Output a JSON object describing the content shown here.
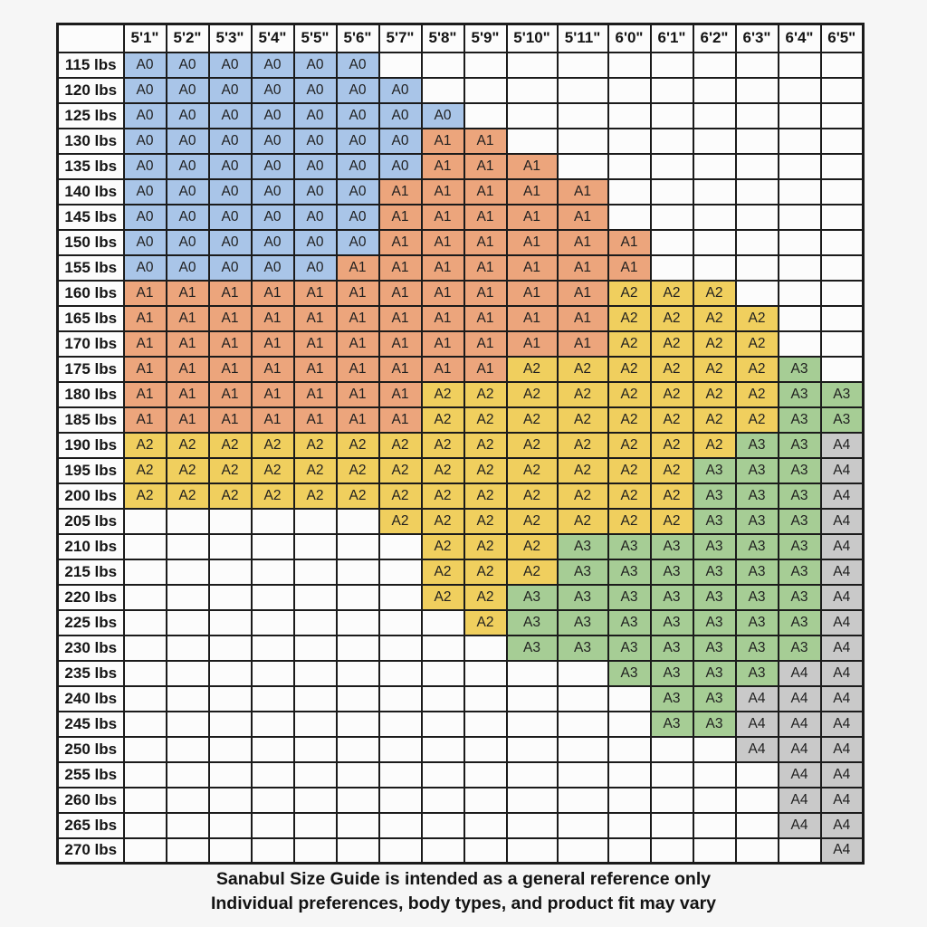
{
  "chart_data": {
    "type": "table",
    "corner_label": "",
    "columns": [
      "5'1\"",
      "5'2\"",
      "5'3\"",
      "5'4\"",
      "5'5\"",
      "5'6\"",
      "5'7\"",
      "5'8\"",
      "5'9\"",
      "5'10\"",
      "5'11\"",
      "6'0\"",
      "6'1\"",
      "6'2\"",
      "6'3\"",
      "6'4\"",
      "6'5\""
    ],
    "rows": [
      {
        "label": "115 lbs",
        "cells": [
          "A0",
          "A0",
          "A0",
          "A0",
          "A0",
          "A0",
          "",
          "",
          "",
          "",
          "",
          "",
          "",
          "",
          "",
          "",
          ""
        ]
      },
      {
        "label": "120 lbs",
        "cells": [
          "A0",
          "A0",
          "A0",
          "A0",
          "A0",
          "A0",
          "A0",
          "",
          "",
          "",
          "",
          "",
          "",
          "",
          "",
          "",
          ""
        ]
      },
      {
        "label": "125 lbs",
        "cells": [
          "A0",
          "A0",
          "A0",
          "A0",
          "A0",
          "A0",
          "A0",
          "A0",
          "",
          "",
          "",
          "",
          "",
          "",
          "",
          "",
          ""
        ]
      },
      {
        "label": "130 lbs",
        "cells": [
          "A0",
          "A0",
          "A0",
          "A0",
          "A0",
          "A0",
          "A0",
          "A1",
          "A1",
          "",
          "",
          "",
          "",
          "",
          "",
          "",
          ""
        ]
      },
      {
        "label": "135 lbs",
        "cells": [
          "A0",
          "A0",
          "A0",
          "A0",
          "A0",
          "A0",
          "A0",
          "A1",
          "A1",
          "A1",
          "",
          "",
          "",
          "",
          "",
          "",
          ""
        ]
      },
      {
        "label": "140 lbs",
        "cells": [
          "A0",
          "A0",
          "A0",
          "A0",
          "A0",
          "A0",
          "A1",
          "A1",
          "A1",
          "A1",
          "A1",
          "",
          "",
          "",
          "",
          "",
          ""
        ]
      },
      {
        "label": "145 lbs",
        "cells": [
          "A0",
          "A0",
          "A0",
          "A0",
          "A0",
          "A0",
          "A1",
          "A1",
          "A1",
          "A1",
          "A1",
          "",
          "",
          "",
          "",
          "",
          ""
        ]
      },
      {
        "label": "150 lbs",
        "cells": [
          "A0",
          "A0",
          "A0",
          "A0",
          "A0",
          "A0",
          "A1",
          "A1",
          "A1",
          "A1",
          "A1",
          "A1",
          "",
          "",
          "",
          "",
          ""
        ]
      },
      {
        "label": "155 lbs",
        "cells": [
          "A0",
          "A0",
          "A0",
          "A0",
          "A0",
          "A1",
          "A1",
          "A1",
          "A1",
          "A1",
          "A1",
          "A1",
          "",
          "",
          "",
          "",
          ""
        ]
      },
      {
        "label": "160 lbs",
        "cells": [
          "A1",
          "A1",
          "A1",
          "A1",
          "A1",
          "A1",
          "A1",
          "A1",
          "A1",
          "A1",
          "A1",
          "A2",
          "A2",
          "A2",
          "",
          "",
          ""
        ]
      },
      {
        "label": "165 lbs",
        "cells": [
          "A1",
          "A1",
          "A1",
          "A1",
          "A1",
          "A1",
          "A1",
          "A1",
          "A1",
          "A1",
          "A1",
          "A2",
          "A2",
          "A2",
          "A2",
          "",
          ""
        ]
      },
      {
        "label": "170 lbs",
        "cells": [
          "A1",
          "A1",
          "A1",
          "A1",
          "A1",
          "A1",
          "A1",
          "A1",
          "A1",
          "A1",
          "A1",
          "A2",
          "A2",
          "A2",
          "A2",
          "",
          ""
        ]
      },
      {
        "label": "175 lbs",
        "cells": [
          "A1",
          "A1",
          "A1",
          "A1",
          "A1",
          "A1",
          "A1",
          "A1",
          "A1",
          "A2",
          "A2",
          "A2",
          "A2",
          "A2",
          "A2",
          "A3",
          ""
        ]
      },
      {
        "label": "180 lbs",
        "cells": [
          "A1",
          "A1",
          "A1",
          "A1",
          "A1",
          "A1",
          "A1",
          "A2",
          "A2",
          "A2",
          "A2",
          "A2",
          "A2",
          "A2",
          "A2",
          "A3",
          "A3"
        ]
      },
      {
        "label": "185 lbs",
        "cells": [
          "A1",
          "A1",
          "A1",
          "A1",
          "A1",
          "A1",
          "A1",
          "A2",
          "A2",
          "A2",
          "A2",
          "A2",
          "A2",
          "A2",
          "A2",
          "A3",
          "A3"
        ]
      },
      {
        "label": "190 lbs",
        "cells": [
          "A2",
          "A2",
          "A2",
          "A2",
          "A2",
          "A2",
          "A2",
          "A2",
          "A2",
          "A2",
          "A2",
          "A2",
          "A2",
          "A2",
          "A3",
          "A3",
          "A4"
        ]
      },
      {
        "label": "195 lbs",
        "cells": [
          "A2",
          "A2",
          "A2",
          "A2",
          "A2",
          "A2",
          "A2",
          "A2",
          "A2",
          "A2",
          "A2",
          "A2",
          "A2",
          "A3",
          "A3",
          "A3",
          "A4"
        ]
      },
      {
        "label": "200 lbs",
        "cells": [
          "A2",
          "A2",
          "A2",
          "A2",
          "A2",
          "A2",
          "A2",
          "A2",
          "A2",
          "A2",
          "A2",
          "A2",
          "A2",
          "A3",
          "A3",
          "A3",
          "A4"
        ]
      },
      {
        "label": "205 lbs",
        "cells": [
          "",
          "",
          "",
          "",
          "",
          "",
          "A2",
          "A2",
          "A2",
          "A2",
          "A2",
          "A2",
          "A2",
          "A3",
          "A3",
          "A3",
          "A4"
        ]
      },
      {
        "label": "210 lbs",
        "cells": [
          "",
          "",
          "",
          "",
          "",
          "",
          "",
          "A2",
          "A2",
          "A2",
          "A3",
          "A3",
          "A3",
          "A3",
          "A3",
          "A3",
          "A4"
        ]
      },
      {
        "label": "215 lbs",
        "cells": [
          "",
          "",
          "",
          "",
          "",
          "",
          "",
          "A2",
          "A2",
          "A2",
          "A3",
          "A3",
          "A3",
          "A3",
          "A3",
          "A3",
          "A4"
        ]
      },
      {
        "label": "220 lbs",
        "cells": [
          "",
          "",
          "",
          "",
          "",
          "",
          "",
          "A2",
          "A2",
          "A3",
          "A3",
          "A3",
          "A3",
          "A3",
          "A3",
          "A3",
          "A4"
        ]
      },
      {
        "label": "225 lbs",
        "cells": [
          "",
          "",
          "",
          "",
          "",
          "",
          "",
          "",
          "A2",
          "A3",
          "A3",
          "A3",
          "A3",
          "A3",
          "A3",
          "A3",
          "A4"
        ]
      },
      {
        "label": "230 lbs",
        "cells": [
          "",
          "",
          "",
          "",
          "",
          "",
          "",
          "",
          "",
          "A3",
          "A3",
          "A3",
          "A3",
          "A3",
          "A3",
          "A3",
          "A4"
        ]
      },
      {
        "label": "235 lbs",
        "cells": [
          "",
          "",
          "",
          "",
          "",
          "",
          "",
          "",
          "",
          "",
          "",
          "A3",
          "A3",
          "A3",
          "A3",
          "A4",
          "A4"
        ]
      },
      {
        "label": "240 lbs",
        "cells": [
          "",
          "",
          "",
          "",
          "",
          "",
          "",
          "",
          "",
          "",
          "",
          "",
          "A3",
          "A3",
          "A4",
          "A4",
          "A4"
        ]
      },
      {
        "label": "245 lbs",
        "cells": [
          "",
          "",
          "",
          "",
          "",
          "",
          "",
          "",
          "",
          "",
          "",
          "",
          "A3",
          "A3",
          "A4",
          "A4",
          "A4"
        ]
      },
      {
        "label": "250 lbs",
        "cells": [
          "",
          "",
          "",
          "",
          "",
          "",
          "",
          "",
          "",
          "",
          "",
          "",
          "",
          "",
          "A4",
          "A4",
          "A4"
        ]
      },
      {
        "label": "255 lbs",
        "cells": [
          "",
          "",
          "",
          "",
          "",
          "",
          "",
          "",
          "",
          "",
          "",
          "",
          "",
          "",
          "",
          "A4",
          "A4"
        ]
      },
      {
        "label": "260 lbs",
        "cells": [
          "",
          "",
          "",
          "",
          "",
          "",
          "",
          "",
          "",
          "",
          "",
          "",
          "",
          "",
          "",
          "A4",
          "A4"
        ]
      },
      {
        "label": "265 lbs",
        "cells": [
          "",
          "",
          "",
          "",
          "",
          "",
          "",
          "",
          "",
          "",
          "",
          "",
          "",
          "",
          "",
          "A4",
          "A4"
        ]
      },
      {
        "label": "270 lbs",
        "cells": [
          "",
          "",
          "",
          "",
          "",
          "",
          "",
          "",
          "",
          "",
          "",
          "",
          "",
          "",
          "",
          "",
          "A4"
        ]
      }
    ],
    "cell_colors": {
      "A0": "#a9c5e8",
      "A1": "#eca57c",
      "A2": "#f0cf5e",
      "A3": "#a6cd95",
      "A4": "#c9c9c9"
    },
    "layout": {
      "grid": true,
      "border_color": "#1b1b1b",
      "empty_cell_color": "#fcfcfc"
    }
  },
  "footer": {
    "line1": "Sanabul Size Guide is intended as a general reference only",
    "line2": "Individual preferences, body types, and product fit may vary"
  }
}
